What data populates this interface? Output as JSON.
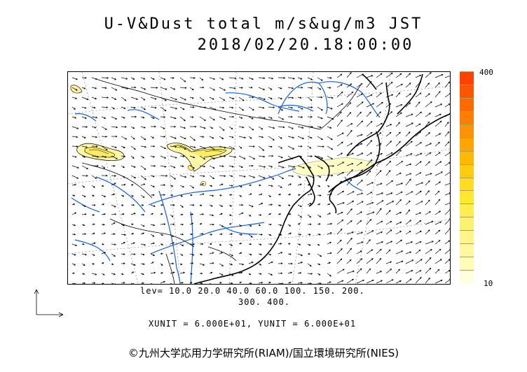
{
  "title_line1": "U-V&Dust total m/s&ug/m3 JST",
  "title_line2": "2018/02/20.18:00:00",
  "colorbar": {
    "max_label": "400",
    "min_label": "10",
    "colors": [
      "#ffffe0",
      "#fffcb8",
      "#fff8a0",
      "#fff588",
      "#fff170",
      "#ffee50",
      "#ffe830",
      "#ffdc20",
      "#ffcc10",
      "#ffb900",
      "#ffa500",
      "#ff9200",
      "#ff7e00",
      "#ff6a00",
      "#ff5500",
      "#ff4200"
    ]
  },
  "levels": {
    "line1": "lev= 10.0 20.0 40.0 60.0 100. 150. 200.",
    "line2": "300. 400."
  },
  "units": "XUNIT = 6.000E+01, YUNIT = 6.000E+01",
  "copyright": "©九州大学応用力学研究所(RIAM)/国立環境研究所(NIES)",
  "colors": {
    "coast": "#000000",
    "river": "#1560e8",
    "border": "#000000",
    "grid": "#999999"
  }
}
